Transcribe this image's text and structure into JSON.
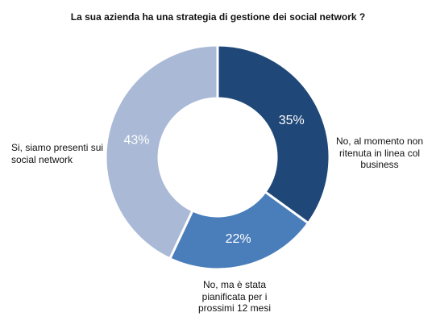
{
  "chart_data": {
    "type": "pie",
    "title": "La sua azienda ha una strategia di gestione dei social network ?",
    "categories": [
      "No, al momento non ritenuta in linea col business",
      "No, ma è stata pianificata per i prossimi 12 mesi",
      "Si, siamo presenti sui social network"
    ],
    "category_label_lines": [
      [
        "No, al momento non",
        "ritenuta in linea col",
        "business"
      ],
      [
        "No, ma è stata",
        "pianificata per i",
        "prossimi 12 mesi"
      ],
      [
        "Si, siamo presenti sui",
        "social network"
      ]
    ],
    "values": [
      35,
      22,
      43
    ],
    "value_labels": [
      "35%",
      "22%",
      "43%"
    ],
    "colors": [
      "#1f4778",
      "#4a7ebb",
      "#a9b9d6"
    ],
    "donut": true
  }
}
